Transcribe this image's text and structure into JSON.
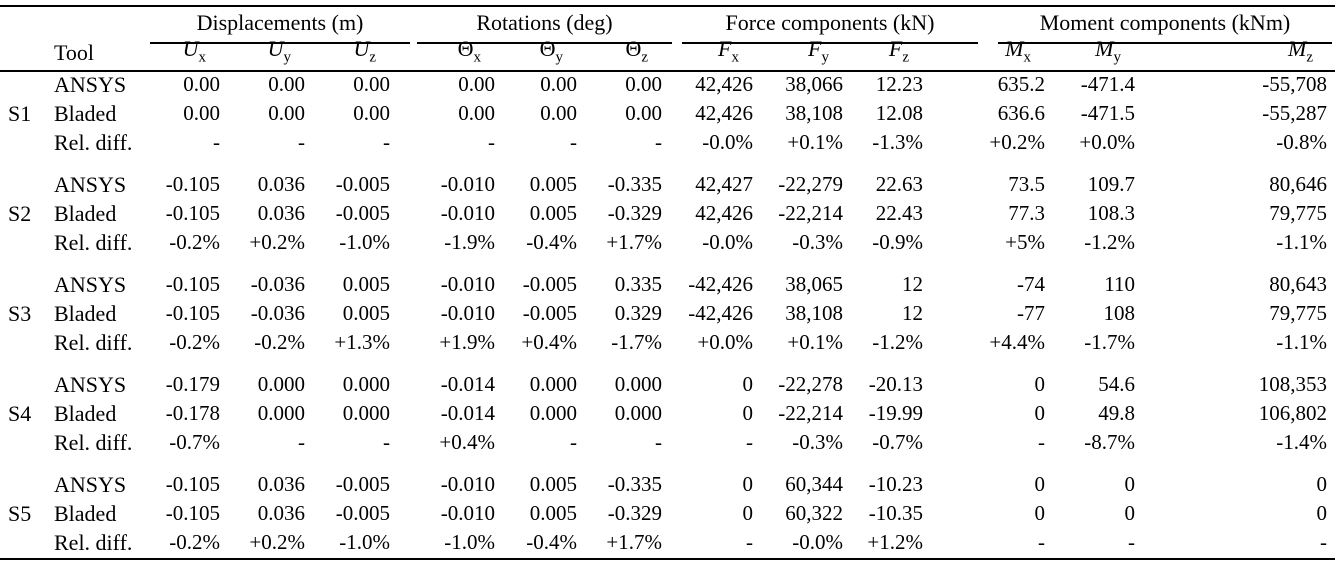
{
  "table": {
    "row_header": "Tool",
    "groups": [
      {
        "label": "Displacements (m)",
        "columns": [
          {
            "base": "U",
            "sub": "x",
            "italic": true
          },
          {
            "base": "U",
            "sub": "y",
            "italic": true
          },
          {
            "base": "U",
            "sub": "z",
            "italic": true
          }
        ]
      },
      {
        "label": "Rotations (deg)",
        "columns": [
          {
            "base": "Θ",
            "sub": "x",
            "italic": false
          },
          {
            "base": "Θ",
            "sub": "y",
            "italic": false
          },
          {
            "base": "Θ",
            "sub": "z",
            "italic": false
          }
        ]
      },
      {
        "label": "Force components (kN)",
        "columns": [
          {
            "base": "F",
            "sub": "x",
            "italic": true
          },
          {
            "base": "F",
            "sub": "y",
            "italic": true
          },
          {
            "base": "F",
            "sub": "z",
            "italic": true
          }
        ]
      },
      {
        "label": "Moment components (kNm)",
        "columns": [
          {
            "base": "M",
            "sub": "x",
            "italic": true
          },
          {
            "base": "M",
            "sub": "y",
            "italic": true
          },
          {
            "base": "M",
            "sub": "z",
            "italic": true
          }
        ]
      }
    ],
    "sections": [
      {
        "id": "S1",
        "rows": [
          {
            "tool": "ANSYS",
            "values": [
              "0.00",
              "0.00",
              "0.00",
              "0.00",
              "0.00",
              "0.00",
              "42,426",
              "38,066",
              "12.23",
              "635.2",
              "-471.4",
              "-55,708"
            ]
          },
          {
            "tool": "Bladed",
            "values": [
              "0.00",
              "0.00",
              "0.00",
              "0.00",
              "0.00",
              "0.00",
              "42,426",
              "38,108",
              "12.08",
              "636.6",
              "-471.5",
              "-55,287"
            ]
          },
          {
            "tool": "Rel. diff.",
            "values": [
              "-",
              "-",
              "-",
              "-",
              "-",
              "-",
              "-0.0%",
              "+0.1%",
              "-1.3%",
              "+0.2%",
              "+0.0%",
              "-0.8%"
            ]
          }
        ]
      },
      {
        "id": "S2",
        "rows": [
          {
            "tool": "ANSYS",
            "values": [
              "-0.105",
              "0.036",
              "-0.005",
              "-0.010",
              "0.005",
              "-0.335",
              "42,427",
              "-22,279",
              "22.63",
              "73.5",
              "109.7",
              "80,646"
            ]
          },
          {
            "tool": "Bladed",
            "values": [
              "-0.105",
              "0.036",
              "-0.005",
              "-0.010",
              "0.005",
              "-0.329",
              "42,426",
              "-22,214",
              "22.43",
              "77.3",
              "108.3",
              "79,775"
            ]
          },
          {
            "tool": "Rel. diff.",
            "values": [
              "-0.2%",
              "+0.2%",
              "-1.0%",
              "-1.9%",
              "-0.4%",
              "+1.7%",
              "-0.0%",
              "-0.3%",
              "-0.9%",
              "+5%",
              "-1.2%",
              "-1.1%"
            ]
          }
        ]
      },
      {
        "id": "S3",
        "rows": [
          {
            "tool": "ANSYS",
            "values": [
              "-0.105",
              "-0.036",
              "0.005",
              "-0.010",
              "-0.005",
              "0.335",
              "-42,426",
              "38,065",
              "12",
              "-74",
              "110",
              "80,643"
            ]
          },
          {
            "tool": "Bladed",
            "values": [
              "-0.105",
              "-0.036",
              "0.005",
              "-0.010",
              "-0.005",
              "0.329",
              "-42,426",
              "38,108",
              "12",
              "-77",
              "108",
              "79,775"
            ]
          },
          {
            "tool": "Rel. diff.",
            "values": [
              "-0.2%",
              "-0.2%",
              "+1.3%",
              "+1.9%",
              "+0.4%",
              "-1.7%",
              "+0.0%",
              "+0.1%",
              "-1.2%",
              "+4.4%",
              "-1.7%",
              "-1.1%"
            ]
          }
        ]
      },
      {
        "id": "S4",
        "rows": [
          {
            "tool": "ANSYS",
            "values": [
              "-0.179",
              "0.000",
              "0.000",
              "-0.014",
              "0.000",
              "0.000",
              "0",
              "-22,278",
              "-20.13",
              "0",
              "54.6",
              "108,353"
            ]
          },
          {
            "tool": "Bladed",
            "values": [
              "-0.178",
              "0.000",
              "0.000",
              "-0.014",
              "0.000",
              "0.000",
              "0",
              "-22,214",
              "-19.99",
              "0",
              "49.8",
              "106,802"
            ]
          },
          {
            "tool": "Rel. diff.",
            "values": [
              "-0.7%",
              "-",
              "-",
              "+0.4%",
              "-",
              "-",
              "-",
              "-0.3%",
              "-0.7%",
              "-",
              "-8.7%",
              "-1.4%"
            ]
          }
        ]
      },
      {
        "id": "S5",
        "rows": [
          {
            "tool": "ANSYS",
            "values": [
              "-0.105",
              "0.036",
              "-0.005",
              "-0.010",
              "0.005",
              "-0.335",
              "0",
              "60,344",
              "-10.23",
              "0",
              "0",
              "0"
            ]
          },
          {
            "tool": "Bladed",
            "values": [
              "-0.105",
              "0.036",
              "-0.005",
              "-0.010",
              "0.005",
              "-0.329",
              "0",
              "60,322",
              "-10.35",
              "0",
              "0",
              "0"
            ]
          },
          {
            "tool": "Rel. diff.",
            "values": [
              "-0.2%",
              "+0.2%",
              "-1.0%",
              "-1.0%",
              "-0.4%",
              "+1.7%",
              "-",
              "-0.0%",
              "+1.2%",
              "-",
              "-",
              "-"
            ]
          }
        ]
      }
    ],
    "colors": {
      "text": "#000000",
      "background": "#ffffff",
      "rule": "#000000"
    }
  }
}
